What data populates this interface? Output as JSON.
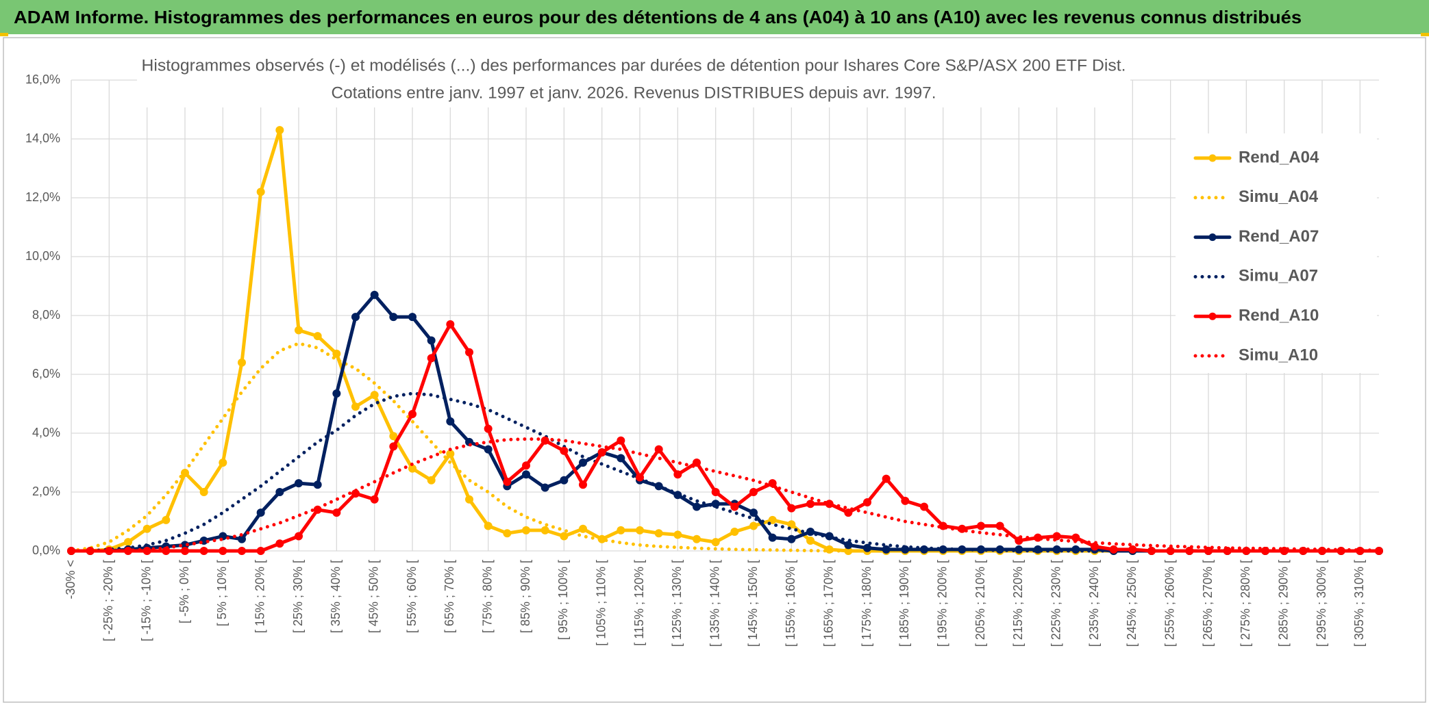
{
  "header": {
    "title": "ADAM Informe. Histogrammes des performances en euros pour des détentions de 4 ans (A04) à 10 ans (A10) avec les revenus connus distribués"
  },
  "chart_data": {
    "type": "line",
    "title": "Histogrammes observés (-) et modélisés (...) des performances par durées de détention pour Ishares Core S&P/ASX 200 ETF Dist.",
    "subtitle": "Cotations entre janv. 1997 et janv. 2026. Revenus DISTRIBUES depuis avr. 1997.",
    "categories": [
      "-30% <",
      null,
      "[ -25% ; -20% [",
      null,
      "[ -15% ; -10% [",
      null,
      "[ -5% ; 0% [",
      null,
      "[ 5% ; 10% [",
      null,
      "[ 15% ; 20% [",
      null,
      "[ 25% ; 30% [",
      null,
      "[ 35% ; 40% [",
      null,
      "[ 45% ; 50% [",
      null,
      "[ 55% ; 60% [",
      null,
      "[ 65% ; 70% [",
      null,
      "[ 75% ; 80% [",
      null,
      "[ 85% ; 90% [",
      null,
      "[ 95% ; 100% [",
      null,
      "[ 105% ; 110% [",
      null,
      "[ 115% ; 120% [",
      null,
      "[ 125% ; 130% [",
      null,
      "[ 135% ; 140% [",
      null,
      "[ 145% ; 150% [",
      null,
      "[ 155% ; 160% [",
      null,
      "[ 165% ; 170% [",
      null,
      "[ 175% ; 180% [",
      null,
      "[ 185% ; 190% [",
      null,
      "[ 195% ; 200% [",
      null,
      "[ 205% ; 210% [",
      null,
      "[ 215% ; 220% [",
      null,
      "[ 225% ; 230% [",
      null,
      "[ 235% ; 240% [",
      null,
      "[ 245% ; 250% [",
      null,
      "[ 255% ; 260% [",
      null,
      "[ 265% ; 270% [",
      null,
      "[ 275% ; 280% [",
      null,
      "[ 285% ; 290% [",
      null,
      "[ 295% ; 300% [",
      null,
      "[ 305% ; 310% [",
      null
    ],
    "series": [
      {
        "name": "Rend_A04",
        "color": "#ffc000",
        "style": "solid",
        "markers": true,
        "values": [
          0,
          0,
          0.05,
          0.3,
          0.75,
          1.05,
          2.65,
          2.0,
          3.0,
          6.4,
          12.2,
          14.3,
          7.5,
          7.3,
          6.7,
          4.9,
          5.3,
          3.9,
          2.8,
          2.4,
          3.3,
          1.75,
          0.85,
          0.6,
          0.7,
          0.7,
          0.5,
          0.75,
          0.4,
          0.7,
          0.7,
          0.6,
          0.55,
          0.4,
          0.3,
          0.65,
          0.85,
          1.05,
          0.9,
          0.35,
          0.05,
          0,
          0,
          0,
          0,
          0,
          0,
          0,
          0,
          0,
          0,
          0,
          0,
          0,
          0,
          0,
          0,
          0,
          0,
          0,
          0,
          0,
          0,
          0,
          0,
          0,
          0,
          0,
          0,
          0
        ]
      },
      {
        "name": "Simu_A04",
        "color": "#ffc000",
        "style": "dotted",
        "markers": false,
        "values": [
          0,
          0.1,
          0.3,
          0.7,
          1.2,
          1.9,
          2.7,
          3.6,
          4.5,
          5.4,
          6.2,
          6.8,
          7.05,
          6.9,
          6.5,
          6.2,
          5.7,
          5.1,
          4.4,
          3.7,
          3.0,
          2.4,
          2.0,
          1.5,
          1.15,
          0.9,
          0.7,
          0.5,
          0.38,
          0.28,
          0.2,
          0.15,
          0.12,
          0.09,
          0.07,
          0.05,
          0.04,
          0.03,
          0.02,
          0.01,
          0,
          0,
          0,
          0,
          0,
          0,
          0,
          0,
          0,
          0,
          0,
          0,
          0,
          0,
          0,
          0,
          0,
          0,
          0,
          0,
          0,
          0,
          0,
          0,
          0,
          0,
          0,
          0,
          0,
          0
        ]
      },
      {
        "name": "Rend_A07",
        "color": "#002060",
        "style": "solid",
        "markers": true,
        "values": [
          0,
          0,
          0,
          0.05,
          0.1,
          0.15,
          0.2,
          0.35,
          0.5,
          0.4,
          1.3,
          2.0,
          2.3,
          2.25,
          5.35,
          7.95,
          8.7,
          7.95,
          7.95,
          7.15,
          4.4,
          3.7,
          3.45,
          2.2,
          2.6,
          2.15,
          2.4,
          3.0,
          3.35,
          3.15,
          2.4,
          2.2,
          1.9,
          1.5,
          1.6,
          1.6,
          1.3,
          0.45,
          0.4,
          0.65,
          0.5,
          0.2,
          0.1,
          0.05,
          0.05,
          0.05,
          0.05,
          0.05,
          0.05,
          0.05,
          0.05,
          0.05,
          0.05,
          0.05,
          0.05,
          0,
          0,
          0,
          0,
          0,
          0,
          0,
          0,
          0,
          0,
          0,
          0,
          0,
          0,
          0
        ]
      },
      {
        "name": "Simu_A07",
        "color": "#002060",
        "style": "dotted",
        "markers": false,
        "values": [
          0,
          0,
          0.05,
          0.1,
          0.2,
          0.35,
          0.6,
          0.9,
          1.3,
          1.75,
          2.2,
          2.7,
          3.2,
          3.7,
          4.1,
          4.6,
          5.0,
          5.25,
          5.35,
          5.3,
          5.15,
          5.0,
          4.8,
          4.5,
          4.2,
          3.9,
          3.55,
          3.2,
          2.95,
          2.7,
          2.45,
          2.2,
          1.95,
          1.7,
          1.5,
          1.3,
          1.1,
          0.9,
          0.75,
          0.6,
          0.47,
          0.36,
          0.27,
          0.2,
          0.14,
          0.1,
          0.07,
          0.05,
          0.03,
          0.02,
          0.01,
          0,
          0,
          0,
          0,
          0,
          0,
          0,
          0,
          0,
          0,
          0,
          0,
          0,
          0,
          0,
          0,
          0,
          0,
          0
        ]
      },
      {
        "name": "Rend_A10",
        "color": "#ff0000",
        "style": "solid",
        "markers": true,
        "values": [
          0,
          0,
          0,
          0,
          0,
          0,
          0,
          0,
          0,
          0,
          0,
          0.25,
          0.5,
          1.4,
          1.3,
          1.95,
          1.75,
          3.55,
          4.65,
          6.55,
          7.7,
          6.75,
          4.15,
          2.35,
          2.9,
          3.75,
          3.4,
          2.25,
          3.35,
          3.75,
          2.5,
          3.45,
          2.6,
          3.0,
          2.0,
          1.5,
          2.0,
          2.3,
          1.45,
          1.6,
          1.6,
          1.3,
          1.65,
          2.45,
          1.7,
          1.5,
          0.85,
          0.75,
          0.85,
          0.85,
          0.35,
          0.45,
          0.5,
          0.45,
          0.15,
          0.05,
          0.05,
          0,
          0,
          0,
          0,
          0,
          0,
          0,
          0,
          0,
          0,
          0,
          0,
          0
        ]
      },
      {
        "name": "Simu_A10",
        "color": "#ff0000",
        "style": "dotted",
        "markers": false,
        "values": [
          0,
          0,
          0,
          0.02,
          0.05,
          0.1,
          0.2,
          0.3,
          0.4,
          0.55,
          0.75,
          0.95,
          1.2,
          1.45,
          1.75,
          2.05,
          2.35,
          2.65,
          2.95,
          3.2,
          3.45,
          3.6,
          3.7,
          3.78,
          3.8,
          3.8,
          3.75,
          3.65,
          3.55,
          3.45,
          3.3,
          3.15,
          3.0,
          2.85,
          2.7,
          2.55,
          2.4,
          2.2,
          2.0,
          1.8,
          1.6,
          1.45,
          1.3,
          1.15,
          1.0,
          0.9,
          0.8,
          0.7,
          0.62,
          0.55,
          0.48,
          0.42,
          0.37,
          0.32,
          0.28,
          0.24,
          0.21,
          0.18,
          0.16,
          0.14,
          0.12,
          0.1,
          0.09,
          0.08,
          0.07,
          0.06,
          0.05,
          0.04,
          0.03,
          0.02
        ]
      }
    ],
    "ylim": [
      0,
      16
    ],
    "yticks": [
      {
        "value": 0,
        "label": "0,0%"
      },
      {
        "value": 2,
        "label": "2,0%"
      },
      {
        "value": 4,
        "label": "4,0%"
      },
      {
        "value": 6,
        "label": "6,0%"
      },
      {
        "value": 8,
        "label": "8,0%"
      },
      {
        "value": 10,
        "label": "10,0%"
      },
      {
        "value": 12,
        "label": "12,0%"
      },
      {
        "value": 14,
        "label": "14,0%"
      },
      {
        "value": 16,
        "label": "16,0%"
      }
    ],
    "grid": true,
    "legend": "right"
  }
}
